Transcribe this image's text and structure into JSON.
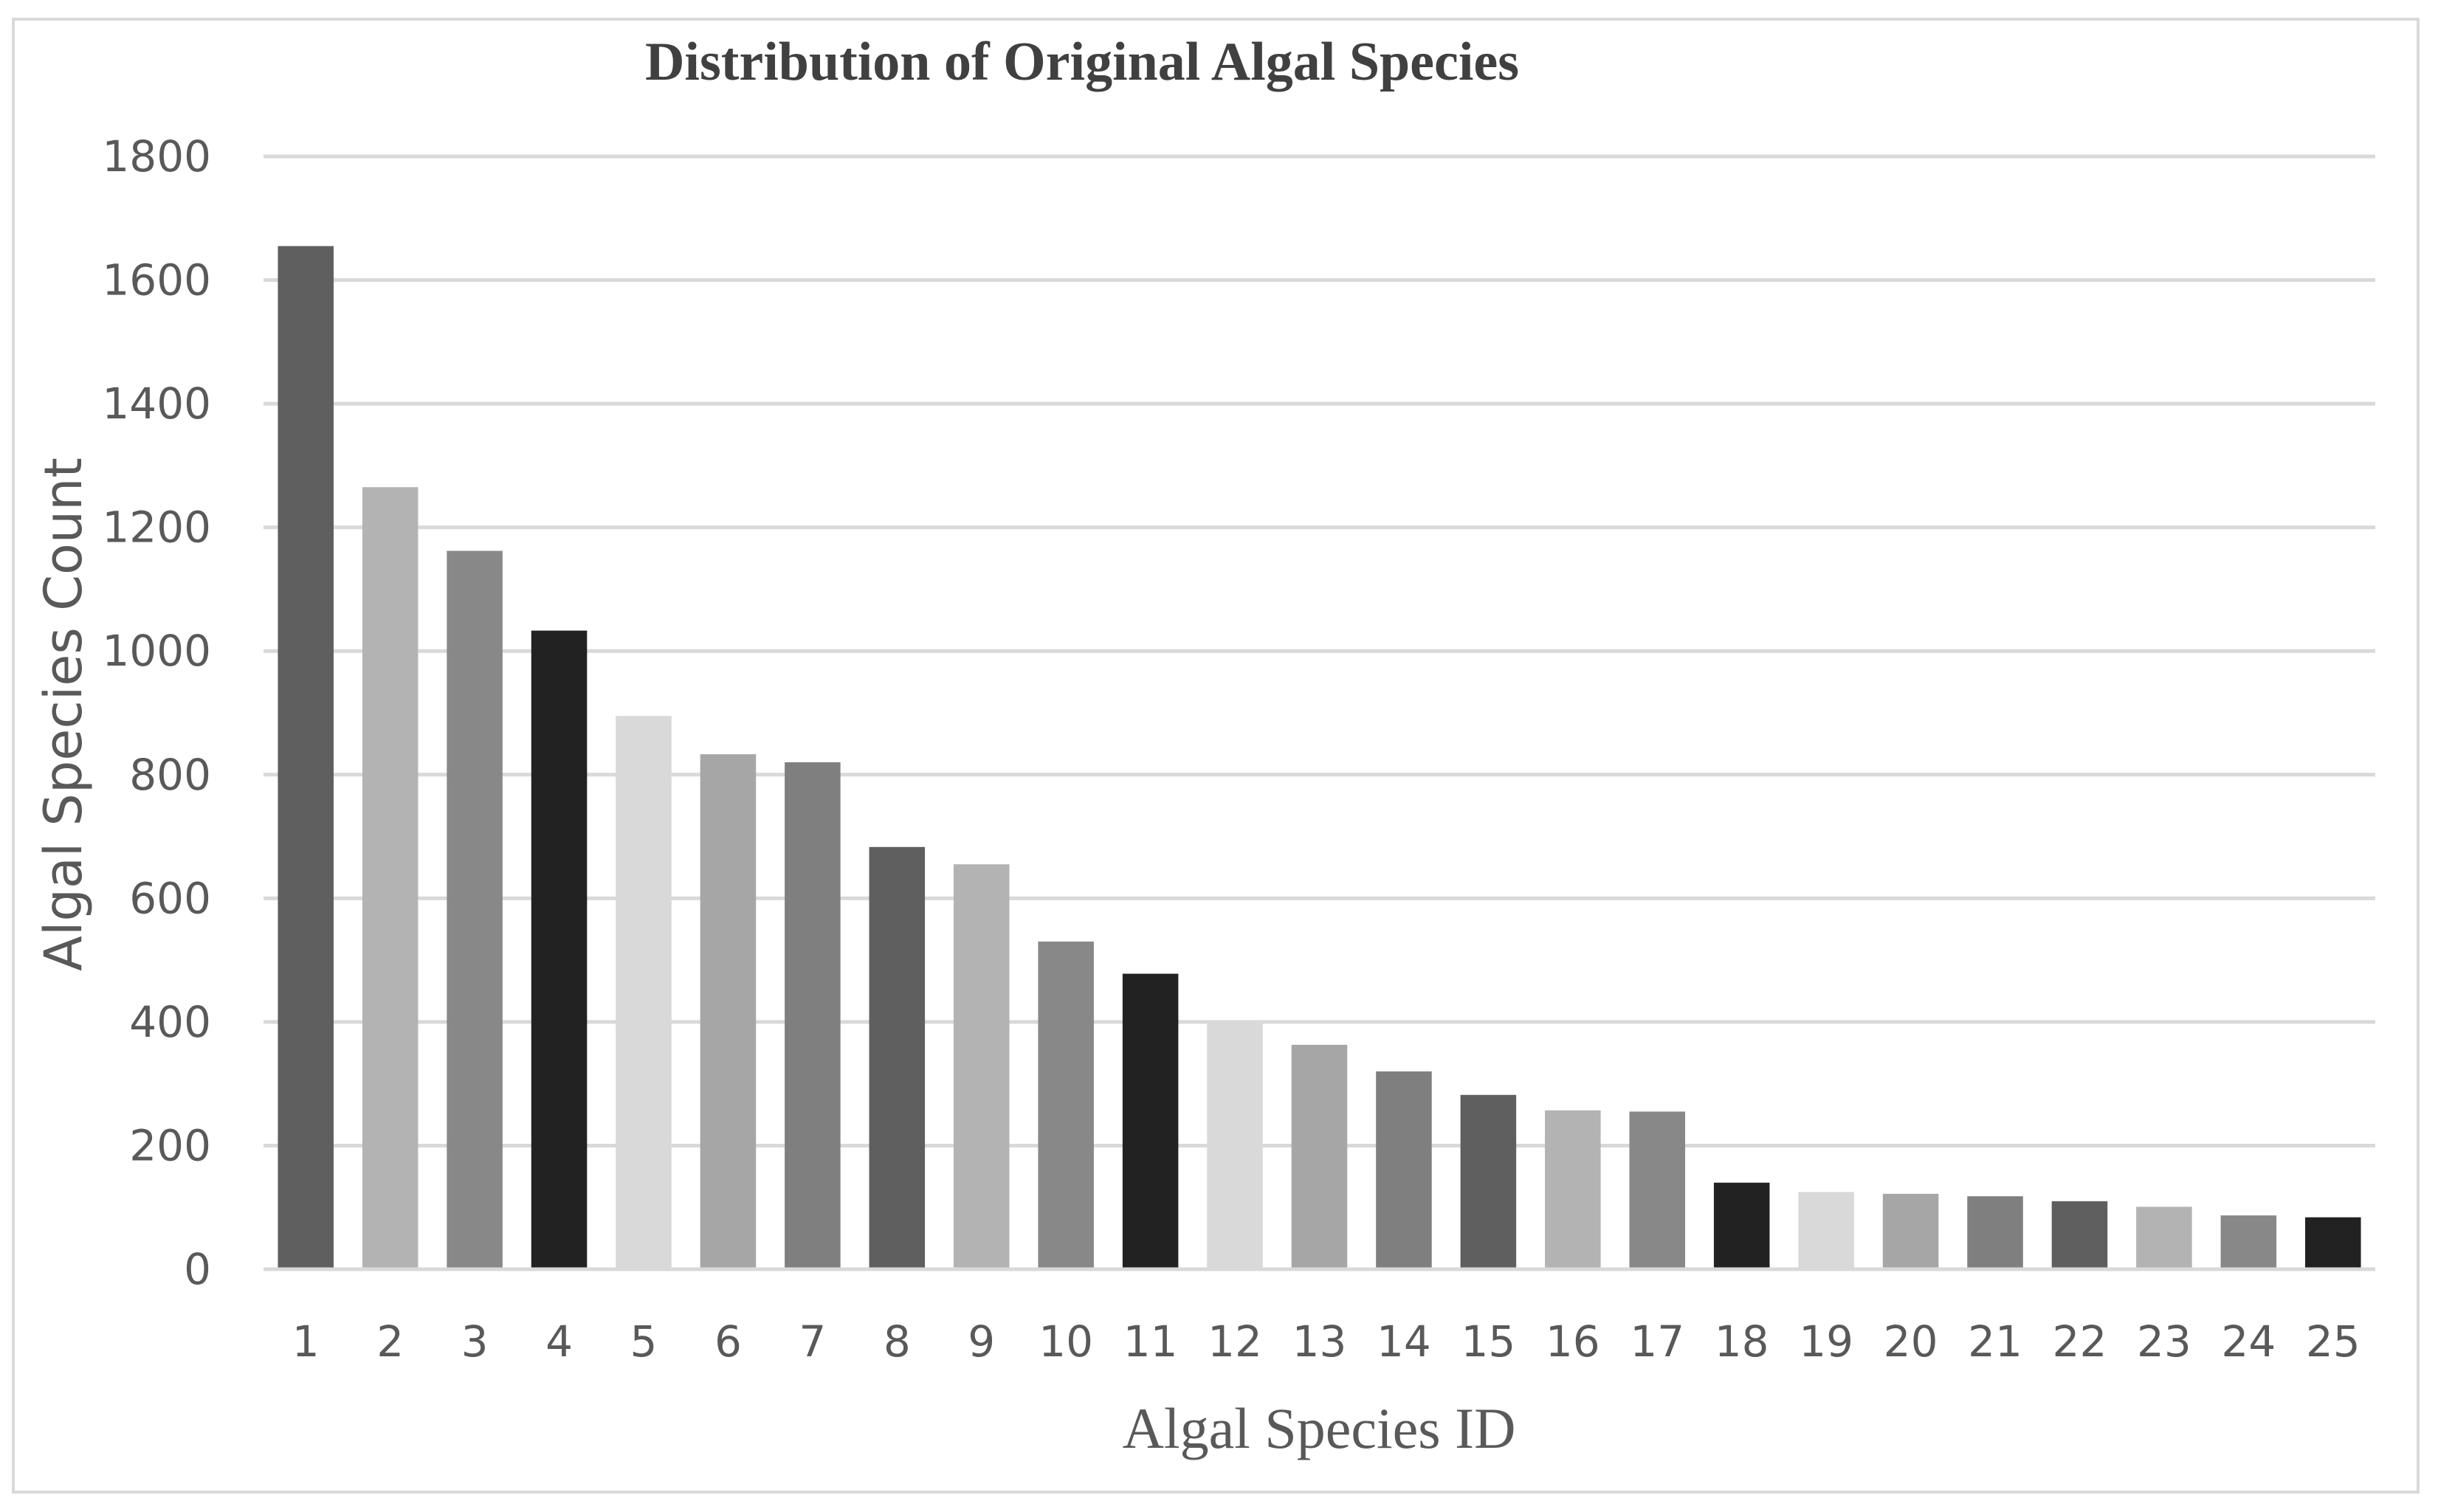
{
  "chart_data": {
    "type": "bar",
    "title": "Distribution of Original Algal Species",
    "xlabel": "Algal Species ID",
    "ylabel": "Algal Species Count",
    "ylim": [
      0,
      1800
    ],
    "yticks": [
      "0",
      "200",
      "400",
      "600",
      "800",
      "1000",
      "1200",
      "1400",
      "1600",
      "1800"
    ],
    "grid": true,
    "legend": "none",
    "categories": [
      "1",
      "2",
      "3",
      "4",
      "5",
      "6",
      "7",
      "8",
      "9",
      "10",
      "11",
      "12",
      "13",
      "14",
      "15",
      "16",
      "17",
      "18",
      "19",
      "20",
      "21",
      "22",
      "23",
      "24",
      "25"
    ],
    "values": [
      1655,
      1265,
      1162,
      1033,
      895,
      833,
      820,
      683,
      655,
      530,
      478,
      400,
      363,
      320,
      282,
      257,
      255,
      140,
      125,
      122,
      118,
      110,
      101,
      87,
      84
    ],
    "colors": [
      "#5f5f5f",
      "#b3b3b3",
      "#888888",
      "#222222",
      "#d9d9d9",
      "#a6a6a6",
      "#7f7f7f",
      "#5f5f5f",
      "#b3b3b3",
      "#888888",
      "#222222",
      "#d9d9d9",
      "#a6a6a6",
      "#7f7f7f",
      "#5f5f5f",
      "#b3b3b3",
      "#888888",
      "#222222",
      "#d9d9d9",
      "#a6a6a6",
      "#7f7f7f",
      "#5f5f5f",
      "#b3b3b3",
      "#888888",
      "#222222"
    ]
  }
}
